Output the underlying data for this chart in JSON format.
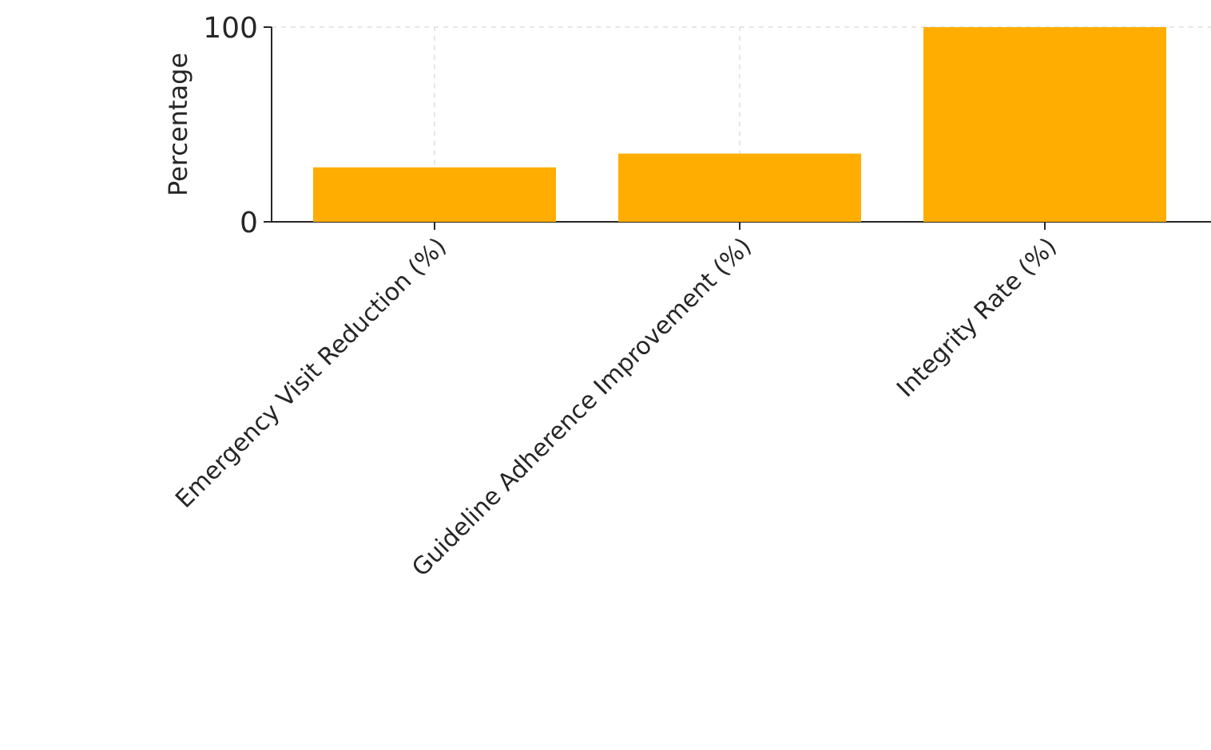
{
  "chart_data": {
    "type": "bar",
    "ylabel": "Percentage",
    "categories": [
      "Emergency Visit Reduction (%)",
      "Guideline Adherence Improvement (%)",
      "Integrity Rate (%)"
    ],
    "values": [
      28,
      35,
      100
    ],
    "color": "#ffad00",
    "ylim": [
      0,
      100
    ],
    "yticks": [
      0,
      100
    ],
    "grid": true
  }
}
